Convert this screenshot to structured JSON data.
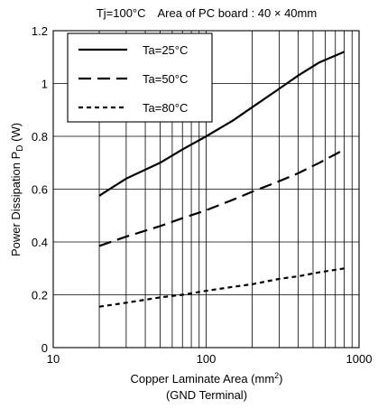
{
  "chart_data": {
    "type": "line",
    "title": "Tj=100°C Area of PC board : 40 × 40mm",
    "xlabel": {
      "line1_main": "Copper Laminate Area (mm",
      "line1_sup": "2",
      "line1_close": ")",
      "line2": "(GND Terminal)"
    },
    "ylabel": {
      "main": "Power Dissipation P",
      "sub": "D",
      "unit": " (W)"
    },
    "xscale": "log",
    "xlim": [
      10,
      1000
    ],
    "ylim": [
      0,
      1.2
    ],
    "x_ticks": [
      10,
      100,
      1000
    ],
    "x_tick_labels": [
      "10",
      "100",
      "1000"
    ],
    "y_ticks": [
      0,
      0.2,
      0.4,
      0.6,
      0.8,
      1,
      1.2
    ],
    "y_tick_labels": [
      "0",
      "0.2",
      "0.4",
      "0.6",
      "0.8",
      "1",
      "1.2"
    ],
    "grid": true,
    "legend_position": "top-left",
    "series": [
      {
        "name": "Ta=25°C",
        "style": "solid",
        "color": "#000000",
        "x": [
          20,
          30,
          50,
          70,
          100,
          150,
          200,
          300,
          400,
          550,
          800
        ],
        "y": [
          0.575,
          0.64,
          0.7,
          0.75,
          0.8,
          0.86,
          0.91,
          0.98,
          1.03,
          1.08,
          1.12
        ]
      },
      {
        "name": "Ta=50°C",
        "style": "dashed",
        "color": "#000000",
        "x": [
          20,
          30,
          50,
          70,
          100,
          150,
          200,
          300,
          400,
          550,
          800
        ],
        "y": [
          0.385,
          0.42,
          0.46,
          0.49,
          0.52,
          0.56,
          0.59,
          0.63,
          0.66,
          0.7,
          0.75
        ]
      },
      {
        "name": "Ta=80°C",
        "style": "dotted",
        "color": "#000000",
        "x": [
          20,
          30,
          50,
          70,
          100,
          150,
          200,
          300,
          400,
          550,
          800
        ],
        "y": [
          0.155,
          0.17,
          0.19,
          0.2,
          0.215,
          0.23,
          0.24,
          0.26,
          0.27,
          0.285,
          0.3
        ]
      }
    ]
  }
}
